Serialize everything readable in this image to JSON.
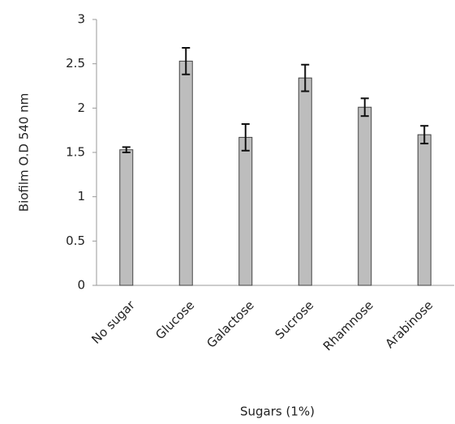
{
  "chart_data": {
    "type": "bar",
    "x_label": "Sugars (1%)",
    "y_label": "Biofilm O.D 540 nm",
    "categories": [
      "No sugar",
      "Glucose",
      "Galactose",
      "Sucrose",
      "Rhamnose",
      "Arabinose"
    ],
    "values": [
      1.53,
      2.53,
      1.67,
      2.34,
      2.01,
      1.7
    ],
    "errors": [
      0.03,
      0.15,
      0.15,
      0.15,
      0.1,
      0.1
    ],
    "color": "#bdbdbd",
    "ylim": [
      0,
      3
    ],
    "yticks": [
      0,
      0.5,
      1,
      1.5,
      2,
      2.5,
      3
    ],
    "grid": false
  }
}
